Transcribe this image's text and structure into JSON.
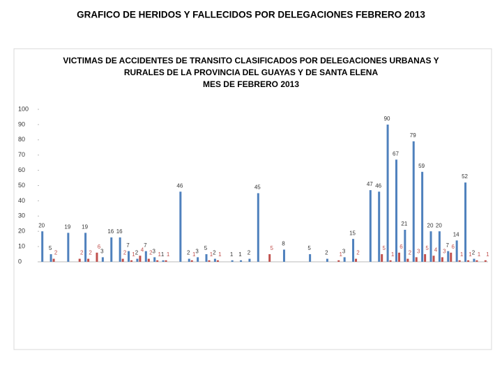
{
  "page_title": "GRAFICO DE HERIDOS Y FALLECIDOS POR DELEGACIONES  FEBRERO 2013",
  "chart_data": {
    "type": "bar",
    "title": [
      "VICTIMAS DE ACCIDENTES  DE TRANSITO CLASIFICADOS POR DELEGACIONES URBANAS Y",
      "RURALES DE LA PROVINCIA DEL GUAYAS Y DE SANTA ELENA",
      "MES DE FEBRERO 2013"
    ],
    "categories": [
      null,
      null,
      null,
      null,
      null,
      null,
      null,
      null,
      null,
      null,
      null,
      null,
      null,
      null,
      null,
      null,
      null,
      null,
      null,
      null,
      null,
      null,
      null,
      null,
      null,
      null,
      null,
      null,
      null,
      null,
      null,
      null,
      null,
      null,
      null,
      null,
      null,
      null,
      null,
      null,
      null,
      null,
      null,
      null,
      null,
      null,
      null,
      null,
      null,
      null,
      null,
      null
    ],
    "series": [
      {
        "color": "#4f81bd",
        "values": [
          20,
          5,
          0,
          19,
          0,
          19,
          0,
          3,
          16,
          16,
          7,
          2,
          7,
          3,
          1,
          0,
          46,
          2,
          3,
          5,
          2,
          0,
          1,
          1,
          2,
          45,
          0,
          0,
          8,
          0,
          0,
          5,
          0,
          2,
          0,
          3,
          15,
          0,
          47,
          46,
          90,
          67,
          21,
          79,
          59,
          20,
          20,
          7,
          14,
          52,
          2,
          0
        ]
      },
      {
        "color": "#c0504d",
        "values": [
          0,
          2,
          0,
          0,
          2,
          2,
          6,
          0,
          0,
          2,
          1,
          4,
          2,
          1,
          1,
          0,
          0,
          1,
          0,
          1,
          1,
          0,
          0,
          0,
          0,
          0,
          5,
          0,
          0,
          0,
          0,
          0,
          0,
          0,
          1,
          0,
          2,
          0,
          0,
          5,
          1,
          6,
          2,
          3,
          5,
          4,
          3,
          6,
          1,
          1,
          1,
          1
        ]
      }
    ],
    "ylim": [
      0,
      100
    ],
    "yticks": [
      0,
      10,
      20,
      30,
      40,
      50,
      60,
      70,
      80,
      90,
      100
    ]
  }
}
